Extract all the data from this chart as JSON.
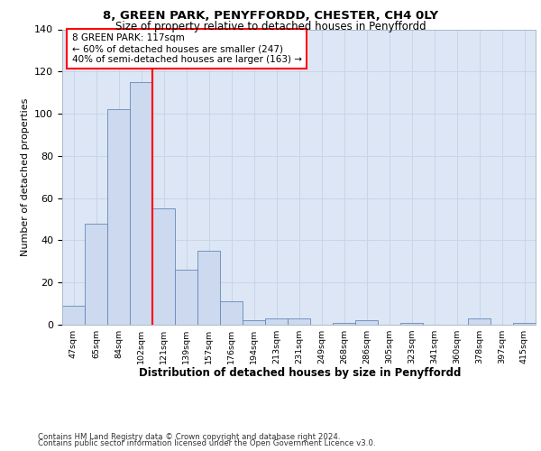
{
  "title1": "8, GREEN PARK, PENYFFORDD, CHESTER, CH4 0LY",
  "title2": "Size of property relative to detached houses in Penyffordd",
  "xlabel": "Distribution of detached houses by size in Penyffordd",
  "ylabel": "Number of detached properties",
  "bar_color": "#ccd9ee",
  "bar_edge_color": "#6688bb",
  "bar_values": [
    9,
    48,
    102,
    115,
    55,
    26,
    35,
    11,
    2,
    3,
    3,
    0,
    1,
    2,
    0,
    1,
    0,
    0,
    3,
    0,
    1
  ],
  "bar_labels": [
    "47sqm",
    "65sqm",
    "84sqm",
    "102sqm",
    "121sqm",
    "139sqm",
    "157sqm",
    "176sqm",
    "194sqm",
    "213sqm",
    "231sqm",
    "249sqm",
    "268sqm",
    "286sqm",
    "305sqm",
    "323sqm",
    "341sqm",
    "360sqm",
    "378sqm",
    "397sqm",
    "415sqm"
  ],
  "ylim": [
    0,
    140
  ],
  "yticks": [
    0,
    20,
    40,
    60,
    80,
    100,
    120,
    140
  ],
  "vline_position": 3.5,
  "annotation_text": "8 GREEN PARK: 117sqm\n← 60% of detached houses are smaller (247)\n40% of semi-detached houses are larger (163) →",
  "annotation_box_color": "white",
  "annotation_box_edge": "red",
  "vline_color": "red",
  "grid_color": "#c8d4e8",
  "bg_color": "#dce6f5",
  "footer1": "Contains HM Land Registry data © Crown copyright and database right 2024.",
  "footer2": "Contains public sector information licensed under the Open Government Licence v3.0."
}
